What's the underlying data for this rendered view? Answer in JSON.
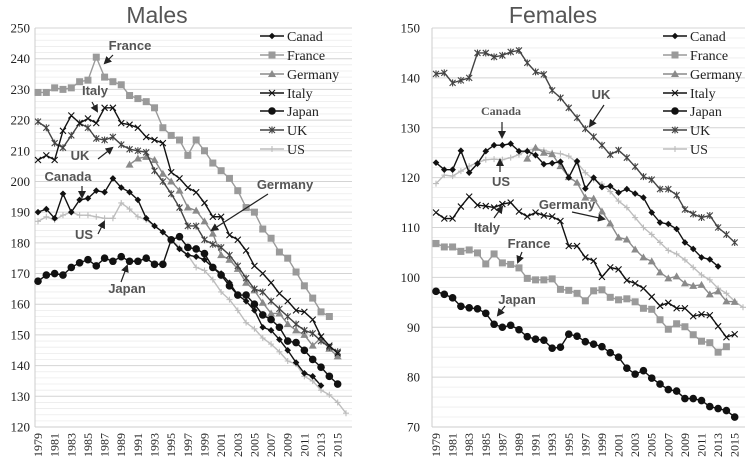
{
  "chart_data": [
    {
      "type": "line",
      "title": "Males",
      "xlabel": "",
      "ylabel": "",
      "ylim": [
        120,
        250
      ],
      "yticks": [
        120,
        130,
        140,
        150,
        160,
        170,
        180,
        190,
        200,
        210,
        220,
        230,
        240,
        250
      ],
      "xlim": [
        1979,
        2016
      ],
      "xticks": [
        1979,
        1981,
        1983,
        1985,
        1987,
        1989,
        1991,
        1993,
        1995,
        1997,
        1999,
        2001,
        2003,
        2005,
        2007,
        2009,
        2011,
        2013,
        2015
      ],
      "grid": true,
      "legend_position": "top-right",
      "series": [
        {
          "name": "Canad",
          "marker": "diamond",
          "color": "#111111",
          "start": 1979,
          "values": [
            190,
            191,
            188,
            196,
            190,
            194,
            194.5,
            197,
            196.5,
            201,
            198,
            196.5,
            194,
            188,
            185.5,
            183.5,
            181,
            178,
            176,
            175.5,
            174.5,
            172,
            170,
            167,
            163,
            161,
            158,
            152.5,
            151.5,
            148.5,
            145,
            141,
            137.5,
            136.5,
            133.5
          ]
        },
        {
          "name": "France",
          "marker": "square",
          "color": "#9a9a9a",
          "start": 1979,
          "values": [
            229,
            229,
            230.5,
            230,
            230.5,
            232.5,
            233,
            240.5,
            234,
            232.5,
            231.5,
            228,
            227,
            226,
            224,
            217.5,
            215,
            213.5,
            208.5,
            213.5,
            210,
            206,
            203.5,
            201,
            197,
            191.5,
            190,
            184.5,
            181.5,
            177,
            175,
            170.5,
            166,
            162,
            157.5,
            156
          ]
        },
        {
          "name": "Germany",
          "marker": "triangle",
          "color": "#8a8a8a",
          "start": 1990,
          "values": [
            205.5,
            207.5,
            208,
            207,
            202.5,
            200,
            197,
            191.5,
            190.5,
            187,
            183,
            176,
            174.5,
            171.5,
            167,
            164.5,
            160.5,
            157,
            157,
            153.5,
            151.5,
            150,
            146.5,
            149,
            145.5,
            143
          ]
        },
        {
          "name": "Italy",
          "marker": "x",
          "color": "#111111",
          "start": 1979,
          "values": [
            207,
            208.5,
            207,
            216.5,
            221.5,
            219,
            220.5,
            219,
            224,
            224,
            219,
            218.5,
            217.5,
            214.5,
            213.5,
            212.5,
            203,
            201,
            198,
            196.5,
            193,
            188.5,
            188.5,
            182.5,
            181,
            177.5,
            172.5,
            170,
            167,
            163.5,
            161,
            158,
            157.5,
            155,
            149.5,
            146.5,
            144
          ]
        },
        {
          "name": "Japan",
          "marker": "circle",
          "color": "#111111",
          "start": 1979,
          "values": [
            167.5,
            169.5,
            170,
            169.5,
            172,
            173.5,
            174.5,
            172.5,
            175,
            174,
            175.5,
            174,
            174,
            175,
            173,
            173,
            181,
            182,
            178.5,
            178,
            176.5,
            172,
            169.5,
            166,
            163,
            163,
            160,
            156.5,
            155,
            152.5,
            148,
            147.5,
            145,
            142,
            139.5,
            136.5,
            134
          ]
        },
        {
          "name": "UK",
          "marker": "star",
          "color": "#444444",
          "start": 1979,
          "values": [
            219.5,
            217.5,
            212.5,
            211,
            215,
            219,
            217.5,
            214,
            213.5,
            214.5,
            212,
            210.5,
            210,
            209.5,
            203.5,
            200,
            196,
            191.5,
            185.5,
            185.5,
            181,
            179.5,
            178.5,
            176,
            172.5,
            168.5,
            165,
            164,
            161,
            158.5,
            156,
            153.5,
            151.5,
            150.5,
            148,
            146,
            144.5
          ]
        },
        {
          "name": "US",
          "marker": "plus",
          "color": "#bdbdbd",
          "start": 1979,
          "values": [
            187,
            188.5,
            187.5,
            189,
            190,
            189,
            189,
            188.5,
            188,
            188,
            193,
            191,
            188.5,
            187.5,
            185.5,
            183.5,
            181,
            178.5,
            176,
            172,
            171,
            168,
            164,
            161.5,
            158,
            154,
            152,
            149,
            147,
            144.5,
            141.5,
            140.5,
            136.5,
            135,
            132,
            130.5,
            128,
            124.5
          ]
        }
      ],
      "annotations": [
        "France",
        "Italy",
        "UK",
        "Canada",
        "US",
        "Japan",
        "Germany"
      ]
    },
    {
      "type": "line",
      "title": "Females",
      "xlabel": "",
      "ylabel": "",
      "ylim": [
        70,
        150
      ],
      "yticks": [
        70,
        80,
        90,
        100,
        110,
        120,
        130,
        140,
        150
      ],
      "xlim": [
        1979,
        2016
      ],
      "xticks": [
        1979,
        1981,
        1983,
        1985,
        1987,
        1989,
        1991,
        1993,
        1995,
        1997,
        1999,
        2001,
        2003,
        2005,
        2007,
        2009,
        2011,
        2013,
        2015
      ],
      "grid": true,
      "legend_position": "top-right",
      "series": [
        {
          "name": "Canad",
          "marker": "diamond",
          "color": "#111111",
          "start": 1979,
          "values": [
            123,
            121.6,
            121.6,
            125.4,
            121,
            122.8,
            125.3,
            126.5,
            126.5,
            126.8,
            125.3,
            125.3,
            124.5,
            122.7,
            122.9,
            123.2,
            120,
            123.3,
            117.8,
            120,
            118.1,
            118.3,
            117,
            117.7,
            116.8,
            116,
            113,
            111,
            110.7,
            109.7,
            107,
            105.7,
            104,
            103.6,
            102.2
          ]
        },
        {
          "name": "France",
          "marker": "square",
          "color": "#9a9a9a",
          "start": 1979,
          "values": [
            106.8,
            106.1,
            106.1,
            105.2,
            105.5,
            104.9,
            102.7,
            104.7,
            102.9,
            102.6,
            101.9,
            99.8,
            99.5,
            99.5,
            99.7,
            97.6,
            97.4,
            96.8,
            95.3,
            97.3,
            97.5,
            96,
            95.5,
            95.7,
            95.1,
            93.8,
            93.6,
            91.5,
            89.6,
            90.7,
            90.1,
            88.5,
            87.2,
            86.9,
            85,
            86.1
          ]
        },
        {
          "name": "Germany",
          "marker": "triangle",
          "color": "#8a8a8a",
          "start": 1990,
          "values": [
            123.8,
            126,
            125,
            124.7,
            122.3,
            120.1,
            119,
            116,
            115.8,
            113.2,
            110.8,
            108,
            107.6,
            105.6,
            104,
            103.2,
            101,
            99.8,
            100.2,
            98.8,
            98.3,
            98.5,
            96.6,
            97.2,
            95.2,
            95.1
          ]
        },
        {
          "name": "Italy",
          "marker": "x",
          "color": "#111111",
          "start": 1979,
          "values": [
            113,
            111.8,
            111.8,
            114.2,
            116.2,
            114.5,
            114.3,
            114,
            114.7,
            115,
            113.2,
            112.2,
            113,
            112.4,
            112.2,
            111.3,
            106.3,
            106.3,
            104,
            103.3,
            100.1,
            102,
            101.6,
            99.4,
            98.8,
            97.8,
            96.1,
            94.3,
            94.9,
            93.8,
            93.8,
            92.2,
            92.6,
            92.4,
            90.2,
            88,
            88.6
          ]
        },
        {
          "name": "Japan",
          "marker": "circle",
          "color": "#111111",
          "start": 1979,
          "values": [
            97.2,
            96.6,
            95.9,
            94.2,
            93.9,
            93.7,
            92.8,
            90.6,
            90,
            90.4,
            89.5,
            88.1,
            87.6,
            87.4,
            85.8,
            86,
            88.6,
            88.2,
            87.1,
            86.6,
            86.1,
            84.9,
            84,
            81.8,
            80.6,
            81.3,
            79.8,
            78.6,
            77.5,
            77.2,
            75.7,
            75.7,
            75.3,
            74.1,
            73.7,
            73.3,
            72
          ]
        },
        {
          "name": "UK",
          "marker": "star",
          "color": "#444444",
          "start": 1979,
          "values": [
            140.8,
            141,
            139,
            139.5,
            140,
            145,
            145,
            144.2,
            144.5,
            145.2,
            145.5,
            143,
            141.2,
            140.7,
            137.5,
            136,
            134,
            132,
            129.8,
            128.2,
            126.5,
            124.6,
            125.5,
            124,
            122.2,
            120.2,
            119.6,
            117.7,
            117.7,
            116.5,
            113.6,
            112.7,
            112,
            112.4,
            110,
            108.6,
            107
          ]
        },
        {
          "name": "US",
          "marker": "plus",
          "color": "#bdbdbd",
          "start": 1979,
          "values": [
            118.8,
            120.5,
            120.3,
            121.3,
            122.3,
            123,
            123.6,
            123.7,
            123.6,
            124,
            124.6,
            125.5,
            125.8,
            125.5,
            125,
            124.8,
            124.3,
            123,
            121,
            119.6,
            118.7,
            117.2,
            115.3,
            114,
            112,
            110,
            108.6,
            107,
            105.4,
            104.7,
            103.5,
            102,
            100.5,
            99.5,
            97.8,
            96.8,
            95.2,
            94
          ]
        }
      ],
      "annotations": [
        "UK",
        "Canada",
        "US",
        "Italy",
        "Germany",
        "France",
        "Japan"
      ]
    }
  ]
}
